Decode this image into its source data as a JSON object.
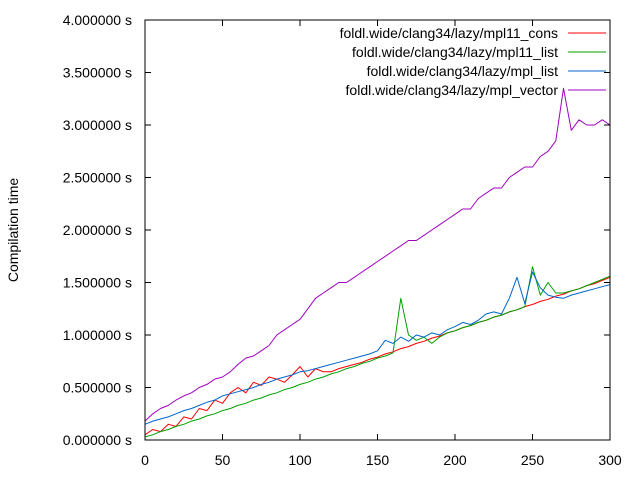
{
  "chart_data": {
    "type": "line",
    "title": "",
    "xlabel": "",
    "ylabel": "Compilation time",
    "xlim": [
      0,
      300
    ],
    "ylim": [
      0,
      4.0
    ],
    "x_ticks": [
      0,
      50,
      100,
      150,
      200,
      250,
      300
    ],
    "y_ticks": [
      0,
      0.5,
      1.0,
      1.5,
      2.0,
      2.5,
      3.0,
      3.5,
      4.0
    ],
    "y_tick_labels": [
      "0.000000 s",
      "0.500000 s",
      "1.000000 s",
      "1.500000 s",
      "2.000000 s",
      "2.500000 s",
      "3.000000 s",
      "3.500000 s",
      "4.000000 s"
    ],
    "grid": false,
    "legend_position": "top-right",
    "x": [
      0,
      5,
      10,
      15,
      20,
      25,
      30,
      35,
      40,
      45,
      50,
      55,
      60,
      65,
      70,
      75,
      80,
      85,
      90,
      95,
      100,
      105,
      110,
      115,
      120,
      125,
      130,
      135,
      140,
      145,
      150,
      155,
      160,
      165,
      170,
      175,
      180,
      185,
      190,
      195,
      200,
      205,
      210,
      215,
      220,
      225,
      230,
      235,
      240,
      245,
      250,
      255,
      260,
      265,
      270,
      275,
      280,
      285,
      290,
      295,
      300
    ],
    "series": [
      {
        "name": "foldl.wide/clang34/lazy/mpl11_cons",
        "color": "#ff0000",
        "values": [
          0.05,
          0.1,
          0.08,
          0.15,
          0.13,
          0.22,
          0.2,
          0.3,
          0.28,
          0.38,
          0.35,
          0.45,
          0.5,
          0.45,
          0.55,
          0.52,
          0.6,
          0.58,
          0.55,
          0.62,
          0.7,
          0.6,
          0.68,
          0.65,
          0.65,
          0.68,
          0.7,
          0.72,
          0.74,
          0.77,
          0.79,
          0.82,
          0.84,
          0.87,
          0.89,
          0.92,
          0.94,
          0.97,
          0.99,
          1.02,
          1.04,
          1.07,
          1.09,
          1.12,
          1.14,
          1.17,
          1.19,
          1.22,
          1.24,
          1.27,
          1.29,
          1.32,
          1.34,
          1.37,
          1.39,
          1.42,
          1.44,
          1.47,
          1.49,
          1.52,
          1.55
        ]
      },
      {
        "name": "foldl.wide/clang34/lazy/mpl11_list",
        "color": "#00a000",
        "values": [
          0.03,
          0.05,
          0.08,
          0.1,
          0.13,
          0.15,
          0.18,
          0.2,
          0.23,
          0.25,
          0.28,
          0.3,
          0.33,
          0.35,
          0.38,
          0.4,
          0.43,
          0.45,
          0.48,
          0.5,
          0.53,
          0.55,
          0.58,
          0.6,
          0.63,
          0.65,
          0.68,
          0.7,
          0.73,
          0.75,
          0.78,
          0.8,
          0.83,
          1.35,
          1.0,
          0.95,
          0.98,
          0.92,
          0.98,
          1.02,
          1.04,
          1.07,
          1.09,
          1.12,
          1.14,
          1.17,
          1.19,
          1.22,
          1.24,
          1.27,
          1.65,
          1.38,
          1.5,
          1.4,
          1.4,
          1.42,
          1.44,
          1.47,
          1.5,
          1.53,
          1.56
        ]
      },
      {
        "name": "foldl.wide/clang34/lazy/mpl_list",
        "color": "#0066cc",
        "values": [
          0.15,
          0.18,
          0.2,
          0.22,
          0.25,
          0.28,
          0.3,
          0.33,
          0.36,
          0.38,
          0.42,
          0.44,
          0.46,
          0.48,
          0.5,
          0.53,
          0.55,
          0.58,
          0.6,
          0.62,
          0.65,
          0.66,
          0.68,
          0.7,
          0.72,
          0.74,
          0.76,
          0.78,
          0.8,
          0.82,
          0.85,
          0.95,
          0.92,
          0.98,
          0.94,
          1.0,
          0.98,
          1.02,
          1.0,
          1.05,
          1.08,
          1.12,
          1.1,
          1.14,
          1.2,
          1.22,
          1.2,
          1.35,
          1.55,
          1.3,
          1.6,
          1.45,
          1.38,
          1.36,
          1.35,
          1.38,
          1.4,
          1.42,
          1.44,
          1.46,
          1.48
        ]
      },
      {
        "name": "foldl.wide/clang34/lazy/mpl_vector",
        "color": "#a000c0",
        "values": [
          0.18,
          0.25,
          0.3,
          0.33,
          0.38,
          0.42,
          0.45,
          0.5,
          0.53,
          0.58,
          0.6,
          0.65,
          0.72,
          0.78,
          0.8,
          0.85,
          0.9,
          1.0,
          1.05,
          1.1,
          1.15,
          1.25,
          1.35,
          1.4,
          1.45,
          1.5,
          1.5,
          1.55,
          1.6,
          1.65,
          1.7,
          1.75,
          1.8,
          1.85,
          1.9,
          1.9,
          1.95,
          2.0,
          2.05,
          2.1,
          2.15,
          2.2,
          2.2,
          2.3,
          2.35,
          2.4,
          2.4,
          2.5,
          2.55,
          2.6,
          2.6,
          2.7,
          2.75,
          2.85,
          3.35,
          2.95,
          3.05,
          3.0,
          3.0,
          3.05,
          3.0
        ]
      }
    ]
  }
}
